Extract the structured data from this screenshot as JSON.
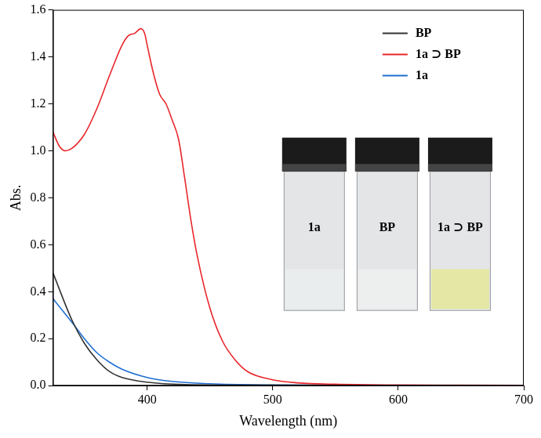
{
  "chart_data": {
    "type": "line",
    "x_label": "Wavelength (nm)",
    "y_label": "Abs.",
    "xlim": [
      325,
      700
    ],
    "xticks": [
      400,
      500,
      600,
      700
    ],
    "ylim": [
      0,
      1.6
    ],
    "yticks": [
      {
        "value": 0,
        "label": "0.0"
      },
      0.2,
      0.4,
      0.6,
      0.8,
      {
        "value": 1,
        "label": "1.0"
      },
      1.2,
      1.4,
      1.6
    ],
    "grid": false,
    "legend": "upper right",
    "annotations": [
      "1a",
      "BP",
      "1a ⊃ BP"
    ],
    "series": [
      {
        "name": "BP",
        "color": "#333333",
        "x": [
          325,
          340,
          350,
          360,
          370,
          380,
          400,
          430,
          500,
          600,
          700
        ],
        "values": [
          0.48,
          0.28,
          0.18,
          0.11,
          0.06,
          0.035,
          0.015,
          0.005,
          0.002,
          0.001,
          0
        ]
      },
      {
        "name": "1a ⊃ BP",
        "color": "#e8262a",
        "x": [
          325,
          330,
          335,
          340,
          350,
          360,
          370,
          380,
          385,
          390,
          395,
          398,
          400,
          405,
          410,
          415,
          420,
          425,
          430,
          435,
          440,
          450,
          460,
          470,
          480,
          500,
          520,
          550,
          600,
          650,
          700
        ],
        "values": [
          1.08,
          1.02,
          1.0,
          1.01,
          1.07,
          1.18,
          1.32,
          1.45,
          1.49,
          1.5,
          1.52,
          1.5,
          1.45,
          1.33,
          1.24,
          1.2,
          1.13,
          1.05,
          0.88,
          0.7,
          0.55,
          0.33,
          0.19,
          0.11,
          0.06,
          0.025,
          0.012,
          0.006,
          0.003,
          0.002,
          0.001
        ]
      },
      {
        "name": "1a",
        "color": "#1f6fd1",
        "x": [
          325,
          340,
          350,
          360,
          370,
          380,
          400,
          420,
          450,
          500,
          600,
          700
        ],
        "values": [
          0.37,
          0.27,
          0.2,
          0.14,
          0.1,
          0.07,
          0.035,
          0.018,
          0.008,
          0.003,
          0.001,
          0
        ]
      }
    ]
  }
}
